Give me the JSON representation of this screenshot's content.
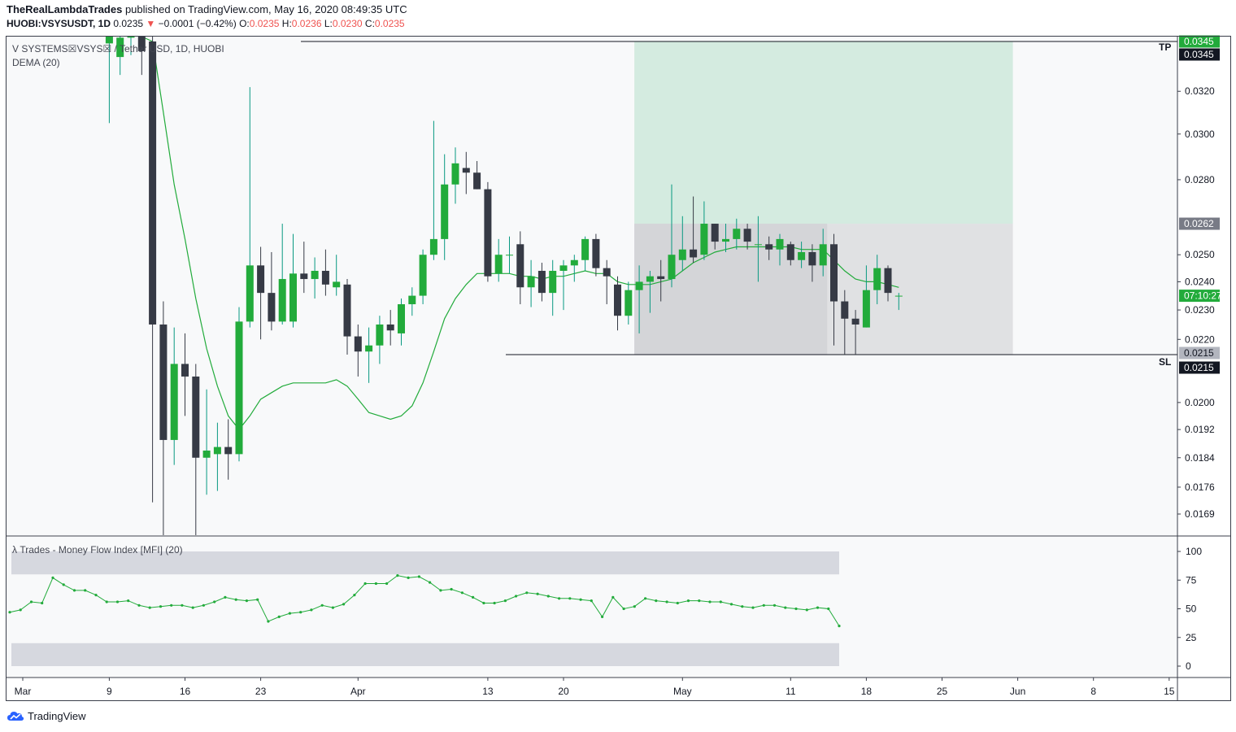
{
  "header": {
    "author": "TheRealLambdaTrades",
    "published": "published on TradingView.com, May 16, 2020 08:49:35 UTC",
    "symbol": "HUOBI:VSYSUSDT, 1D",
    "last": "0.0235",
    "change_arrow": "▼",
    "change": "−0.0001 (−0.42%)",
    "o_label": "O:",
    "o": "0.0235",
    "h_label": "H:",
    "h": "0.0236",
    "l_label": "L:",
    "l": "0.0230",
    "c_label": "C:",
    "c": "0.0235"
  },
  "legend": {
    "main": "V SYSTEMS☒VSYS☒ / Tether USD, 1D, HUOBI",
    "dema": "DEMA (20)",
    "mfi": "λ Trades - Money Flow Index [MFI] (20)"
  },
  "footer": {
    "brand": "TradingView"
  },
  "colors": {
    "up": "#089981",
    "up_body": "#22ab3b",
    "down": "#363a45",
    "dema": "#22ab3b",
    "target": "#d4ebe0",
    "stop": "#e0e1e3",
    "mfi": "#22ab3b"
  },
  "chart_data": [
    {
      "type": "candlestick",
      "title": "V SYSTEMS☒VSYS☒ / Tether USD, 1D, HUOBI",
      "y_scale": "log",
      "y_ticks": [
        "0.0320",
        "0.0300",
        "0.0280",
        "0.0250",
        "0.0240",
        "0.0230",
        "0.0220",
        "0.0200",
        "0.0192",
        "0.0184",
        "0.0176",
        "0.0169"
      ],
      "x_ticks": [
        {
          "label": "Mar",
          "day": 0
        },
        {
          "label": "9",
          "day": 8
        },
        {
          "label": "16",
          "day": 15
        },
        {
          "label": "23",
          "day": 22
        },
        {
          "label": "Apr",
          "day": 31
        },
        {
          "label": "13",
          "day": 43
        },
        {
          "label": "20",
          "day": 50
        },
        {
          "label": "May",
          "day": 61
        },
        {
          "label": "11",
          "day": 71
        },
        {
          "label": "18",
          "day": 78
        },
        {
          "label": "25",
          "day": 85
        },
        {
          "label": "Jun",
          "day": 92
        },
        {
          "label": "8",
          "day": 99
        },
        {
          "label": "15",
          "day": 106
        }
      ],
      "price_labels": {
        "tp_label": "TP",
        "sl_label": "SL",
        "tp_top": "0.0345",
        "tp": "0.0345",
        "entry": "0.0262",
        "countdown": "07:10:27",
        "sl_top": "0.0215",
        "sl": "0.0215"
      },
      "levels": {
        "tp": 0.0345,
        "entry": 0.0262,
        "sl": 0.0215
      },
      "position": {
        "start_day": 57,
        "end_day": 92
      },
      "candles": [
        [
          8,
          0.0344,
          0.036,
          0.0305,
          0.0356
        ],
        [
          9,
          0.0337,
          0.0356,
          0.0328,
          0.0347
        ],
        [
          10,
          0.0347,
          0.0358,
          0.0338,
          0.0352
        ],
        [
          11,
          0.0351,
          0.0356,
          0.0328,
          0.034
        ],
        [
          12,
          0.0345,
          0.0348,
          0.0172,
          0.0225
        ],
        [
          13,
          0.0225,
          0.0233,
          0.0163,
          0.0189
        ],
        [
          14,
          0.0189,
          0.0224,
          0.0182,
          0.0212
        ],
        [
          15,
          0.0212,
          0.0222,
          0.0196,
          0.0208
        ],
        [
          16,
          0.0208,
          0.0212,
          0.016,
          0.0184
        ],
        [
          17,
          0.0184,
          0.0204,
          0.0174,
          0.0186
        ],
        [
          18,
          0.0185,
          0.0194,
          0.0175,
          0.0187
        ],
        [
          19,
          0.0187,
          0.0195,
          0.0178,
          0.0185
        ],
        [
          20,
          0.0185,
          0.0231,
          0.0183,
          0.0226
        ],
        [
          21,
          0.0226,
          0.0322,
          0.0224,
          0.0246
        ],
        [
          22,
          0.0246,
          0.0253,
          0.022,
          0.0236
        ],
        [
          23,
          0.0236,
          0.0251,
          0.0223,
          0.0226
        ],
        [
          24,
          0.0226,
          0.0262,
          0.0225,
          0.0241
        ],
        [
          25,
          0.0226,
          0.0258,
          0.0224,
          0.0243
        ],
        [
          26,
          0.0243,
          0.0255,
          0.0236,
          0.0241
        ],
        [
          27,
          0.0241,
          0.0249,
          0.0234,
          0.0244
        ],
        [
          28,
          0.0244,
          0.0252,
          0.0235,
          0.0239
        ],
        [
          29,
          0.0238,
          0.025,
          0.0235,
          0.024
        ],
        [
          30,
          0.0239,
          0.0241,
          0.0215,
          0.0221
        ],
        [
          31,
          0.0221,
          0.0225,
          0.0208,
          0.0216
        ],
        [
          32,
          0.0216,
          0.0224,
          0.0206,
          0.0218
        ],
        [
          33,
          0.0218,
          0.0228,
          0.0212,
          0.0225
        ],
        [
          34,
          0.0225,
          0.023,
          0.0218,
          0.0223
        ],
        [
          35,
          0.0222,
          0.0234,
          0.0218,
          0.0232
        ],
        [
          36,
          0.0232,
          0.0238,
          0.0228,
          0.0235
        ],
        [
          37,
          0.0235,
          0.0252,
          0.0232,
          0.025
        ],
        [
          38,
          0.025,
          0.0306,
          0.0248,
          0.0256
        ],
        [
          39,
          0.0256,
          0.0291,
          0.0248,
          0.0278
        ],
        [
          40,
          0.0278,
          0.0294,
          0.027,
          0.0287
        ],
        [
          41,
          0.0285,
          0.0292,
          0.0274,
          0.0283
        ],
        [
          42,
          0.0283,
          0.0288,
          0.0276,
          0.0276
        ],
        [
          43,
          0.0276,
          0.0279,
          0.024,
          0.0242
        ],
        [
          44,
          0.0243,
          0.0256,
          0.024,
          0.025
        ],
        [
          45,
          0.025,
          0.0257,
          0.0243,
          0.025
        ],
        [
          46,
          0.0254,
          0.0259,
          0.0232,
          0.0238
        ],
        [
          47,
          0.0238,
          0.0248,
          0.0231,
          0.0242
        ],
        [
          48,
          0.0244,
          0.0247,
          0.0233,
          0.0236
        ],
        [
          49,
          0.0236,
          0.0248,
          0.0228,
          0.0244
        ],
        [
          50,
          0.0244,
          0.0248,
          0.023,
          0.0246
        ],
        [
          51,
          0.0246,
          0.025,
          0.024,
          0.0248
        ],
        [
          52,
          0.0248,
          0.0257,
          0.0244,
          0.0256
        ],
        [
          53,
          0.0256,
          0.0258,
          0.0242,
          0.0245
        ],
        [
          54,
          0.0245,
          0.0248,
          0.0232,
          0.0242
        ],
        [
          55,
          0.0239,
          0.0242,
          0.0223,
          0.0228
        ],
        [
          56,
          0.0228,
          0.024,
          0.0225,
          0.0237
        ],
        [
          57,
          0.0237,
          0.0246,
          0.0222,
          0.024
        ],
        [
          58,
          0.024,
          0.0244,
          0.0229,
          0.0242
        ],
        [
          59,
          0.0242,
          0.0248,
          0.0233,
          0.0241
        ],
        [
          60,
          0.0241,
          0.0278,
          0.0238,
          0.025
        ],
        [
          61,
          0.0248,
          0.0265,
          0.0244,
          0.0252
        ],
        [
          62,
          0.0252,
          0.0273,
          0.0247,
          0.0249
        ],
        [
          63,
          0.025,
          0.0271,
          0.0248,
          0.0262
        ],
        [
          64,
          0.0262,
          0.0262,
          0.0252,
          0.0255
        ],
        [
          65,
          0.0255,
          0.0262,
          0.0251,
          0.0256
        ],
        [
          66,
          0.0256,
          0.0264,
          0.0252,
          0.026
        ],
        [
          67,
          0.026,
          0.0262,
          0.0252,
          0.0255
        ],
        [
          68,
          0.0254,
          0.0265,
          0.024,
          0.0254
        ],
        [
          69,
          0.0254,
          0.0257,
          0.0248,
          0.0252
        ],
        [
          70,
          0.0252,
          0.0258,
          0.0246,
          0.0256
        ],
        [
          71,
          0.0254,
          0.0255,
          0.0246,
          0.0248
        ],
        [
          72,
          0.0248,
          0.0255,
          0.0245,
          0.0251
        ],
        [
          73,
          0.0251,
          0.0254,
          0.024,
          0.0246
        ],
        [
          74,
          0.0246,
          0.026,
          0.0242,
          0.0254
        ],
        [
          75,
          0.0254,
          0.0258,
          0.0218,
          0.0233
        ],
        [
          76,
          0.0233,
          0.0237,
          0.0215,
          0.0227
        ],
        [
          77,
          0.0227,
          0.023,
          0.0215,
          0.0225
        ],
        [
          78,
          0.0224,
          0.0246,
          0.0224,
          0.0237
        ],
        [
          79,
          0.0237,
          0.025,
          0.0232,
          0.0245
        ],
        [
          80,
          0.0245,
          0.0246,
          0.0233,
          0.0236
        ],
        [
          81,
          0.0235,
          0.0236,
          0.023,
          0.0235
        ]
      ],
      "dema": [
        [
          11,
          0.0368
        ],
        [
          12,
          0.0345
        ],
        [
          13,
          0.031
        ],
        [
          14,
          0.0278
        ],
        [
          15,
          0.0256
        ],
        [
          16,
          0.0234
        ],
        [
          17,
          0.0217
        ],
        [
          18,
          0.0205
        ],
        [
          19,
          0.0196
        ],
        [
          20,
          0.0192
        ],
        [
          21,
          0.0196
        ],
        [
          22,
          0.0201
        ],
        [
          23,
          0.0203
        ],
        [
          24,
          0.0205
        ],
        [
          25,
          0.0206
        ],
        [
          26,
          0.0206
        ],
        [
          27,
          0.0206
        ],
        [
          28,
          0.0206
        ],
        [
          29,
          0.0207
        ],
        [
          30,
          0.0205
        ],
        [
          31,
          0.0201
        ],
        [
          32,
          0.0197
        ],
        [
          33,
          0.0196
        ],
        [
          34,
          0.0195
        ],
        [
          35,
          0.0196
        ],
        [
          36,
          0.0199
        ],
        [
          37,
          0.0206
        ],
        [
          38,
          0.0216
        ],
        [
          39,
          0.0227
        ],
        [
          40,
          0.0234
        ],
        [
          41,
          0.0239
        ],
        [
          42,
          0.0243
        ],
        [
          43,
          0.0243
        ],
        [
          44,
          0.0243
        ],
        [
          45,
          0.0243
        ],
        [
          46,
          0.0242
        ],
        [
          47,
          0.0242
        ],
        [
          48,
          0.0241
        ],
        [
          49,
          0.0242
        ],
        [
          50,
          0.0242
        ],
        [
          51,
          0.0243
        ],
        [
          52,
          0.0244
        ],
        [
          53,
          0.0243
        ],
        [
          54,
          0.0243
        ],
        [
          55,
          0.024
        ],
        [
          56,
          0.0239
        ],
        [
          57,
          0.0239
        ],
        [
          58,
          0.0239
        ],
        [
          59,
          0.024
        ],
        [
          60,
          0.0241
        ],
        [
          61,
          0.0244
        ],
        [
          62,
          0.0247
        ],
        [
          63,
          0.0249
        ],
        [
          64,
          0.0251
        ],
        [
          65,
          0.0252
        ],
        [
          66,
          0.0253
        ],
        [
          67,
          0.0253
        ],
        [
          68,
          0.0253
        ],
        [
          69,
          0.0253
        ],
        [
          70,
          0.0253
        ],
        [
          71,
          0.0253
        ],
        [
          72,
          0.0252
        ],
        [
          73,
          0.0252
        ],
        [
          74,
          0.0252
        ],
        [
          75,
          0.0248
        ],
        [
          76,
          0.0244
        ],
        [
          77,
          0.0241
        ],
        [
          78,
          0.024
        ],
        [
          79,
          0.024
        ],
        [
          80,
          0.0239
        ],
        [
          81,
          0.0238
        ]
      ]
    },
    {
      "type": "line",
      "title": "λ Trades - Money Flow Index [MFI] (20)",
      "y_ticks": [
        100,
        75,
        50,
        25,
        0
      ],
      "ylim": [
        0,
        100
      ],
      "bands": [
        [
          80,
          100
        ],
        [
          0,
          20
        ]
      ],
      "x_start_day": 0,
      "values": [
        47,
        49,
        56,
        55,
        77,
        71,
        66,
        66,
        62,
        56,
        56,
        57,
        53,
        51,
        52,
        53,
        53,
        51,
        53,
        56,
        60,
        58,
        57,
        58,
        39,
        43,
        46,
        47,
        49,
        53,
        51,
        54,
        62,
        72,
        72,
        72,
        79,
        77,
        78,
        73,
        66,
        67,
        64,
        60,
        55,
        55,
        57,
        61,
        64,
        63,
        61,
        59,
        59,
        58,
        57,
        43,
        60,
        50,
        52,
        59,
        57,
        56,
        55,
        57,
        57,
        56,
        56,
        54,
        52,
        51,
        53,
        53,
        51,
        50,
        49,
        51,
        50,
        35
      ]
    }
  ]
}
